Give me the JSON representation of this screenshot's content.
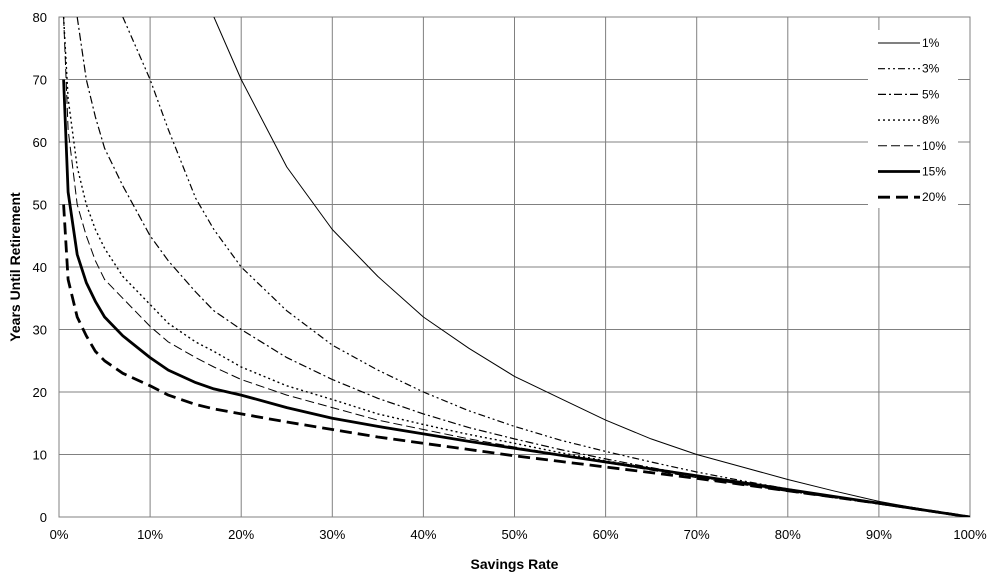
{
  "chart_data": {
    "type": "line",
    "title": "",
    "xlabel": "Savings Rate",
    "ylabel": "Years Until Retirement",
    "xlim": [
      0,
      100
    ],
    "ylim": [
      0,
      80
    ],
    "x_ticks": [
      0,
      10,
      20,
      30,
      40,
      50,
      60,
      70,
      80,
      90,
      100
    ],
    "x_tick_labels": [
      "0%",
      "10%",
      "20%",
      "30%",
      "40%",
      "50%",
      "60%",
      "70%",
      "80%",
      "90%",
      "100%"
    ],
    "y_ticks": [
      0,
      10,
      20,
      30,
      40,
      50,
      60,
      70,
      80
    ],
    "y_tick_labels": [
      "0",
      "10",
      "20",
      "30",
      "40",
      "50",
      "60",
      "70",
      "80"
    ],
    "grid": true,
    "legend_position": "top-right",
    "x": [
      0.5,
      1,
      2,
      3,
      4,
      5,
      7,
      10,
      12,
      15,
      17,
      20,
      25,
      30,
      35,
      40,
      45,
      50,
      55,
      60,
      65,
      70,
      75,
      80,
      85,
      90,
      95,
      100
    ],
    "series": [
      {
        "name": "1%",
        "style": "solid-thin",
        "values": [
          null,
          null,
          null,
          null,
          null,
          null,
          null,
          null,
          null,
          null,
          80,
          70,
          56,
          46,
          38.5,
          32,
          27,
          22.5,
          19,
          15.5,
          12.5,
          10,
          8,
          6,
          4.2,
          2.5,
          1.2,
          0
        ]
      },
      {
        "name": "3%",
        "style": "dash-dot-dot",
        "values": [
          null,
          null,
          null,
          null,
          null,
          null,
          80,
          70,
          62,
          51,
          46,
          40,
          33,
          27.5,
          23.5,
          20,
          17,
          14.5,
          12.3,
          10.5,
          8.8,
          7.2,
          5.8,
          4.5,
          3.3,
          2.2,
          1.1,
          0
        ]
      },
      {
        "name": "5%",
        "style": "dash-dot",
        "values": [
          null,
          null,
          80,
          70,
          64,
          59,
          53,
          45,
          41,
          36,
          33,
          30,
          25.5,
          22,
          19,
          16.5,
          14.3,
          12.5,
          10.8,
          9.3,
          7.9,
          6.6,
          5.3,
          4.2,
          3.2,
          2.2,
          1.1,
          0
        ]
      },
      {
        "name": "8%",
        "style": "dotted",
        "values": [
          80,
          67,
          56,
          50,
          46,
          43,
          38.5,
          34,
          31,
          28,
          26.5,
          24,
          21,
          18.8,
          16.5,
          14.8,
          13.2,
          11.8,
          10.3,
          9,
          7.8,
          6.5,
          5.3,
          4.2,
          3.1,
          2.1,
          1.1,
          0
        ]
      },
      {
        "name": "10%",
        "style": "dashed-thin",
        "values": [
          80,
          62,
          50,
          45,
          41,
          38,
          35,
          30.5,
          28,
          25.5,
          24,
          22,
          19.5,
          17.5,
          15.5,
          14,
          12.5,
          11.2,
          10,
          8.7,
          7.5,
          6.3,
          5.2,
          4.1,
          3.1,
          2.1,
          1,
          0
        ]
      },
      {
        "name": "15%",
        "style": "solid-thick",
        "values": [
          70,
          52,
          42,
          37.5,
          34.5,
          32,
          29,
          25.5,
          23.5,
          21.5,
          20.5,
          19.5,
          17.5,
          15.8,
          14.5,
          13.3,
          12.1,
          11,
          9.9,
          8.8,
          7.7,
          6.6,
          5.5,
          4.4,
          3.3,
          2.2,
          1.1,
          0
        ]
      },
      {
        "name": "20%",
        "style": "dashed-thick",
        "values": [
          50,
          38,
          32,
          29,
          26.5,
          25,
          23,
          21,
          19.5,
          18,
          17.3,
          16.5,
          15.2,
          14,
          12.8,
          11.8,
          10.8,
          9.8,
          8.9,
          8,
          7.1,
          6.2,
          5.2,
          4.2,
          3.2,
          2.2,
          1.1,
          0
        ]
      }
    ]
  }
}
